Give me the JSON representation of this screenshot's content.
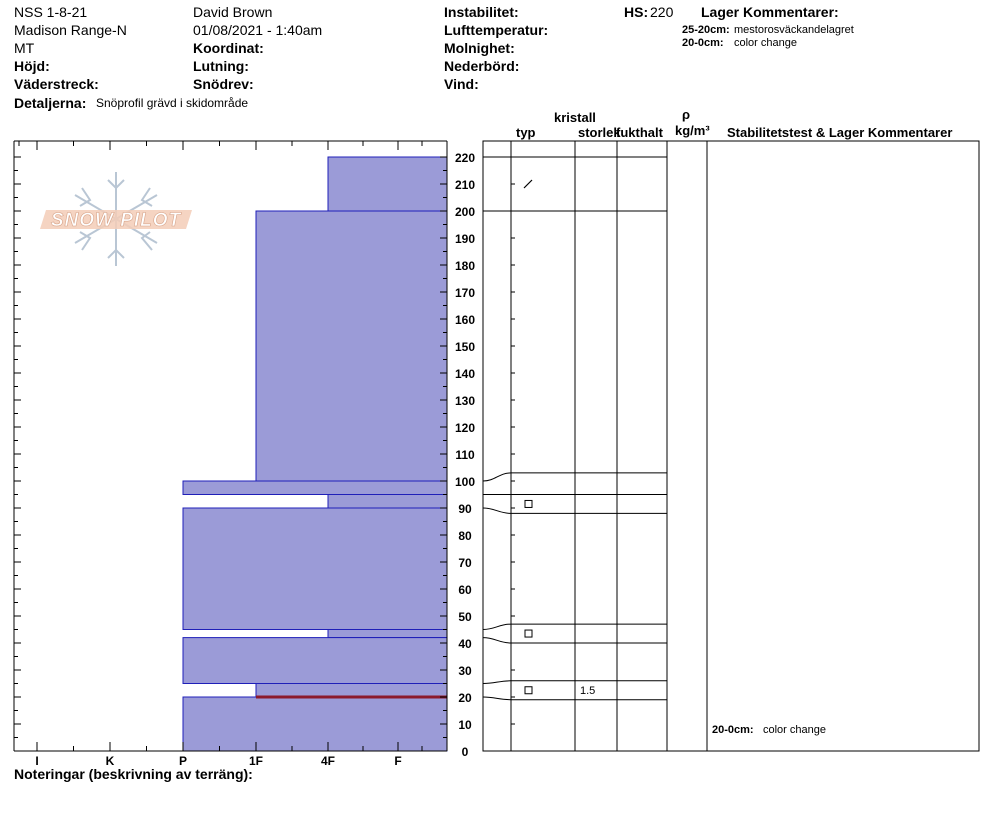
{
  "header": {
    "left": [
      "NSS 1-8-21",
      "Madison Range-N",
      "MT"
    ],
    "hojd_label": "Höjd:",
    "vaderstreck_label": "Väderstreck:",
    "detaljerna_label": "Detaljerna:",
    "detaljerna_value": "Snöprofil grävd i skidområde",
    "observer": "David Brown",
    "datetime": "01/08/2021 - 1:40am",
    "koordinat_label": "Koordinat:",
    "lutning_label": "Lutning:",
    "snodrev_label": "Snödrev:",
    "instabilitet_label": "Instabilitet:",
    "lufttemperatur_label": "Lufttemperatur:",
    "molnighet_label": "Molnighet:",
    "nederbord_label": "Nederbörd:",
    "vind_label": "Vind:",
    "hs_label": "HS:",
    "hs_value": "220",
    "lager_kommentarer_label": "Lager Kommentarer:",
    "comments": [
      {
        "depth": "25-20cm:",
        "text": "mestorosväckandelagret"
      },
      {
        "depth": "20-0cm:",
        "text": "color change"
      }
    ]
  },
  "logo_text": "SNOW PILOT",
  "footer_label": "Noteringar (beskrivning av terräng):",
  "right_panel": {
    "kristall": "kristall",
    "typ": "typ",
    "storlek": "storlek",
    "fukthalt": "fukthalt",
    "rho": "ρ",
    "density_unit": "kg/m³",
    "stability_header": "Stabilitetstest & Lager Kommentarer",
    "stability_note_depth": "20-0cm:",
    "stability_note_text": "color change",
    "size_value": "1.5"
  },
  "chart_data": {
    "type": "snow-profile",
    "hardness_categories": [
      "I",
      "K",
      "P",
      "1F",
      "4F",
      "F"
    ],
    "depth_ticks": [
      0,
      10,
      20,
      30,
      40,
      50,
      60,
      70,
      80,
      90,
      100,
      110,
      120,
      130,
      140,
      150,
      160,
      170,
      180,
      190,
      200,
      210,
      220
    ],
    "ylim": [
      0,
      220
    ],
    "layers": [
      {
        "top": 220,
        "bottom": 200,
        "hardness": "4F"
      },
      {
        "top": 200,
        "bottom": 100,
        "hardness": "1F"
      },
      {
        "top": 100,
        "bottom": 95,
        "hardness": "P"
      },
      {
        "top": 95,
        "bottom": 90,
        "hardness": "4F"
      },
      {
        "top": 90,
        "bottom": 45,
        "hardness": "P"
      },
      {
        "top": 45,
        "bottom": 42,
        "hardness": "4F"
      },
      {
        "top": 42,
        "bottom": 25,
        "hardness": "P"
      },
      {
        "top": 25,
        "bottom": 20,
        "hardness": "1F"
      },
      {
        "top": 20,
        "bottom": 0,
        "hardness": "P"
      }
    ],
    "critical_layer_depth": 20,
    "layer_boundaries": [
      220,
      200,
      100,
      95,
      90,
      45,
      42,
      25,
      20
    ],
    "crystal_rows": [
      {
        "top": 220,
        "bottom": 200,
        "type": "decomposing"
      },
      {
        "top": 103,
        "bottom": 95,
        "type": ""
      },
      {
        "top": 95,
        "bottom": 88,
        "type": "faceted"
      },
      {
        "top": 47,
        "bottom": 40,
        "type": "faceted"
      },
      {
        "top": 26,
        "bottom": 19,
        "type": "faceted"
      }
    ]
  }
}
